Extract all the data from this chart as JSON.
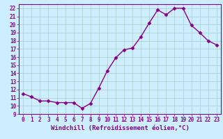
{
  "x": [
    0,
    1,
    2,
    3,
    4,
    5,
    6,
    7,
    8,
    9,
    10,
    11,
    12,
    13,
    14,
    15,
    16,
    17,
    18,
    19,
    20,
    21,
    22,
    23
  ],
  "y": [
    11.5,
    11.1,
    10.6,
    10.6,
    10.4,
    10.4,
    10.4,
    9.7,
    10.3,
    12.2,
    14.3,
    15.9,
    16.9,
    17.1,
    18.5,
    20.2,
    21.8,
    21.2,
    22.0,
    22.0,
    19.9,
    19.0,
    18.0,
    17.5
  ],
  "line_color": "#880088",
  "marker": "D",
  "markersize": 2.5,
  "linewidth": 1.0,
  "bg_color": "#cceeff",
  "grid_color": "#aacccc",
  "xlabel": "Windchill (Refroidissement éolien,°C)",
  "ylim": [
    9,
    22.5
  ],
  "xlim": [
    -0.5,
    23.5
  ],
  "yticks": [
    9,
    10,
    11,
    12,
    13,
    14,
    15,
    16,
    17,
    18,
    19,
    20,
    21,
    22
  ],
  "xticks": [
    0,
    1,
    2,
    3,
    4,
    5,
    6,
    7,
    8,
    9,
    10,
    11,
    12,
    13,
    14,
    15,
    16,
    17,
    18,
    19,
    20,
    21,
    22,
    23
  ],
  "tick_fontsize": 5.5,
  "xlabel_fontsize": 6.5,
  "tick_color": "#880088",
  "spine_color": "#880088"
}
